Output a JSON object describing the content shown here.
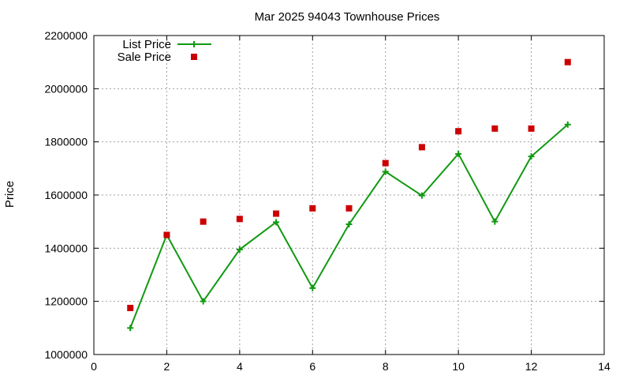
{
  "chart_data": {
    "type": "line",
    "title": "Mar 2025 94043 Townhouse Prices",
    "xlabel": "",
    "ylabel": "Price",
    "xlim": [
      0,
      14
    ],
    "ylim": [
      1000000,
      2200000
    ],
    "xticks": [
      0,
      2,
      4,
      6,
      8,
      10,
      12,
      14
    ],
    "yticks": [
      1000000,
      1200000,
      1400000,
      1600000,
      1800000,
      2000000,
      2200000
    ],
    "grid": true,
    "legend_position": "top-left",
    "series": [
      {
        "name": "List Price",
        "style": "line-with-plus-markers",
        "color": "#119911",
        "x": [
          1,
          2,
          3,
          4,
          5,
          6,
          7,
          8,
          9,
          10,
          11,
          12,
          13
        ],
        "y": [
          1100000,
          1450000,
          1200000,
          1395000,
          1498000,
          1250000,
          1490000,
          1688000,
          1598000,
          1755000,
          1500000,
          1745000,
          1865000
        ]
      },
      {
        "name": "Sale Price",
        "style": "square-markers",
        "color": "#cc0000",
        "x": [
          1,
          2,
          3,
          4,
          5,
          6,
          7,
          8,
          9,
          10,
          11,
          12,
          13
        ],
        "y": [
          1175000,
          1450000,
          1500000,
          1510000,
          1530000,
          1550000,
          1550000,
          1720000,
          1780000,
          1840000,
          1850000,
          1850000,
          2100000
        ]
      }
    ]
  }
}
